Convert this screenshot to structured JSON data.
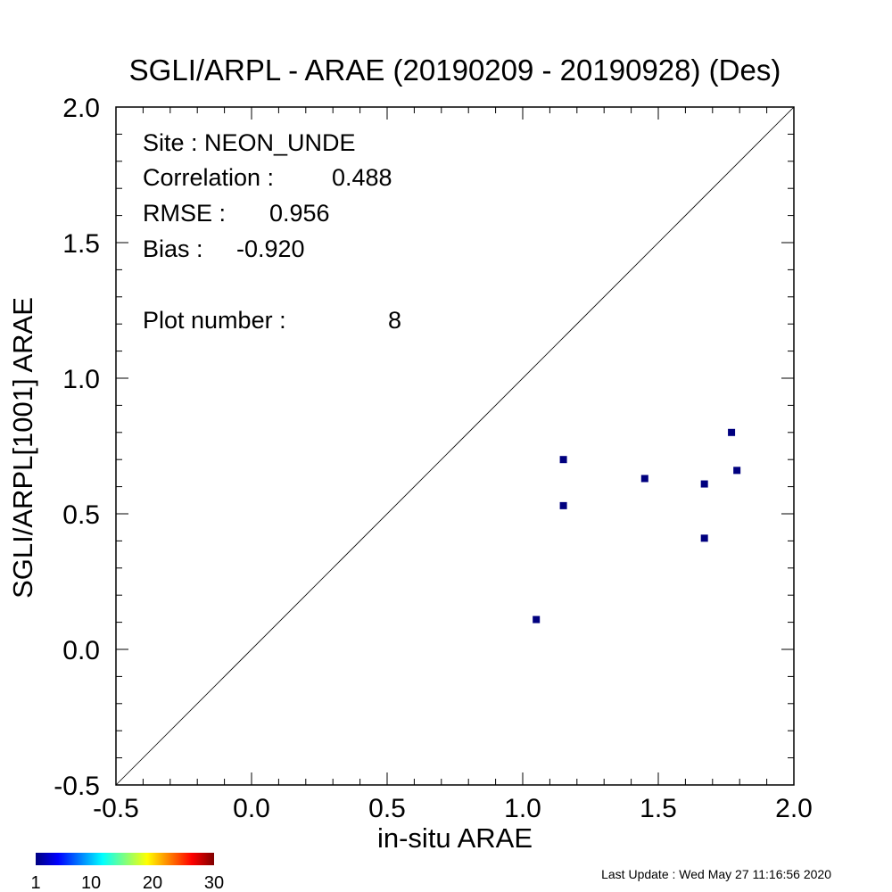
{
  "chart_data": {
    "type": "scatter",
    "title": "SGLI/ARPL - ARAE (20190209 - 20190928) (Des)",
    "xlabel": "in-situ ARAE",
    "ylabel": "SGLI/ARPL[1001]    ARAE",
    "xlim": [
      -0.5,
      2.0
    ],
    "ylim": [
      -0.5,
      2.0
    ],
    "xticks": [
      "-0.5",
      "0.0",
      "0.5",
      "1.0",
      "1.5",
      "2.0"
    ],
    "yticks": [
      "-0.5",
      "0.0",
      "0.5",
      "1.0",
      "1.5",
      "2.0"
    ],
    "grid": false,
    "one_to_one_line": true,
    "marker_color": "#00007f",
    "points": [
      {
        "x": 1.05,
        "y": 0.11
      },
      {
        "x": 1.15,
        "y": 0.7
      },
      {
        "x": 1.15,
        "y": 0.53
      },
      {
        "x": 1.45,
        "y": 0.63
      },
      {
        "x": 1.67,
        "y": 0.61
      },
      {
        "x": 1.67,
        "y": 0.41
      },
      {
        "x": 1.77,
        "y": 0.8
      },
      {
        "x": 1.79,
        "y": 0.66
      }
    ],
    "stats": {
      "site_label": "Site : NEON_UNDE",
      "correlation_label": "Correlation :",
      "correlation_value": "0.488",
      "rmse_label": "RMSE :",
      "rmse_value": "0.956",
      "bias_label": "Bias :",
      "bias_value": "-0.920",
      "plot_number_label": "Plot number :",
      "plot_number_value": "8"
    },
    "colorbar": {
      "ticks": [
        "1",
        "10",
        "20",
        "30"
      ],
      "colors": [
        "#00007f",
        "#0000ff",
        "#007fff",
        "#00ffff",
        "#7fff7f",
        "#ffff00",
        "#ff7f00",
        "#ff0000",
        "#7f0000"
      ]
    }
  },
  "footer": {
    "last_update": "Last Update : Wed May 27 11:16:56 2020"
  }
}
